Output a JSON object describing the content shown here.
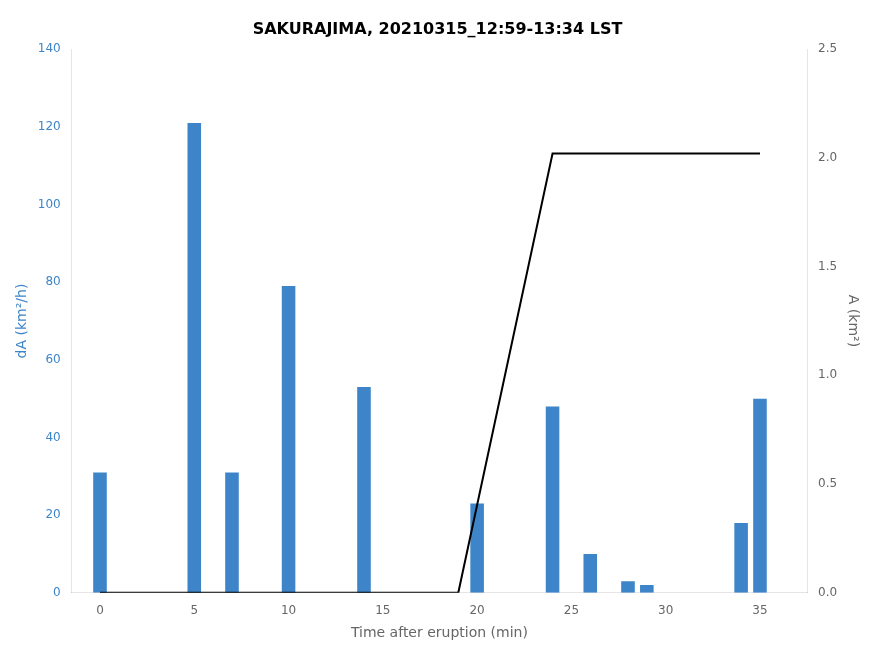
{
  "chart_data": {
    "type": "bar",
    "title": "SAKURAJIMA, 20210315_12:59-13:34 LST",
    "xlabel": "Time after eruption (min)",
    "ylabel": "dA (km²/h)",
    "y2label": "A (km²)",
    "series": [
      {
        "type": "bar",
        "color": "#3d85c8",
        "x": [
          0,
          5,
          7,
          10,
          14,
          20,
          24,
          26,
          28,
          29,
          34,
          35
        ],
        "values": [
          31,
          121,
          31,
          79,
          53,
          23,
          48,
          10,
          3,
          2,
          18,
          50
        ]
      },
      {
        "type": "line",
        "color": "#000000",
        "axis": "y2",
        "x": [
          0,
          19.0,
          24.0,
          35
        ],
        "values": [
          0,
          0,
          2.02,
          2.02
        ]
      }
    ],
    "xlim": [
      -1.5,
      37.5
    ],
    "xticks": [
      0,
      5,
      10,
      15,
      20,
      25,
      30,
      35
    ],
    "ylim": [
      0,
      140
    ],
    "yticks": [
      0,
      20,
      40,
      60,
      80,
      100,
      120,
      140
    ],
    "y2lim": [
      0,
      2.5
    ],
    "y2ticks": [
      {
        "value": 0,
        "label": "0.0"
      },
      0.5,
      {
        "value": 1.0,
        "label": "1.0"
      },
      1.5,
      {
        "value": 2.0,
        "label": "2.0"
      },
      2.5
    ],
    "grid": false
  }
}
